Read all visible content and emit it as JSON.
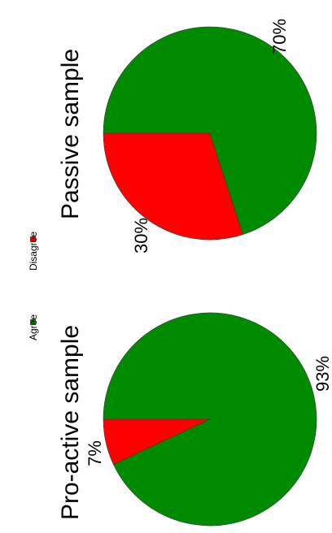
{
  "legend": [
    {
      "label": "Agree",
      "color": "#008a00"
    },
    {
      "label": "Disagree",
      "color": "#ff0000"
    }
  ],
  "chart_data": [
    {
      "type": "pie",
      "title": "Pro-active sample",
      "slices": [
        {
          "label": "Agree",
          "value": 93,
          "display": "93%",
          "color": "#008a00"
        },
        {
          "label": "Disagree",
          "value": 7,
          "display": "7%",
          "color": "#ff0000"
        }
      ],
      "legend_position": "center-left"
    },
    {
      "type": "pie",
      "title": "Passive sample",
      "slices": [
        {
          "label": "Agree",
          "value": 70,
          "display": "70%",
          "color": "#008a00"
        },
        {
          "label": "Disagree",
          "value": 30,
          "display": "30%",
          "color": "#ff0000"
        }
      ],
      "legend_position": "center-left"
    }
  ]
}
